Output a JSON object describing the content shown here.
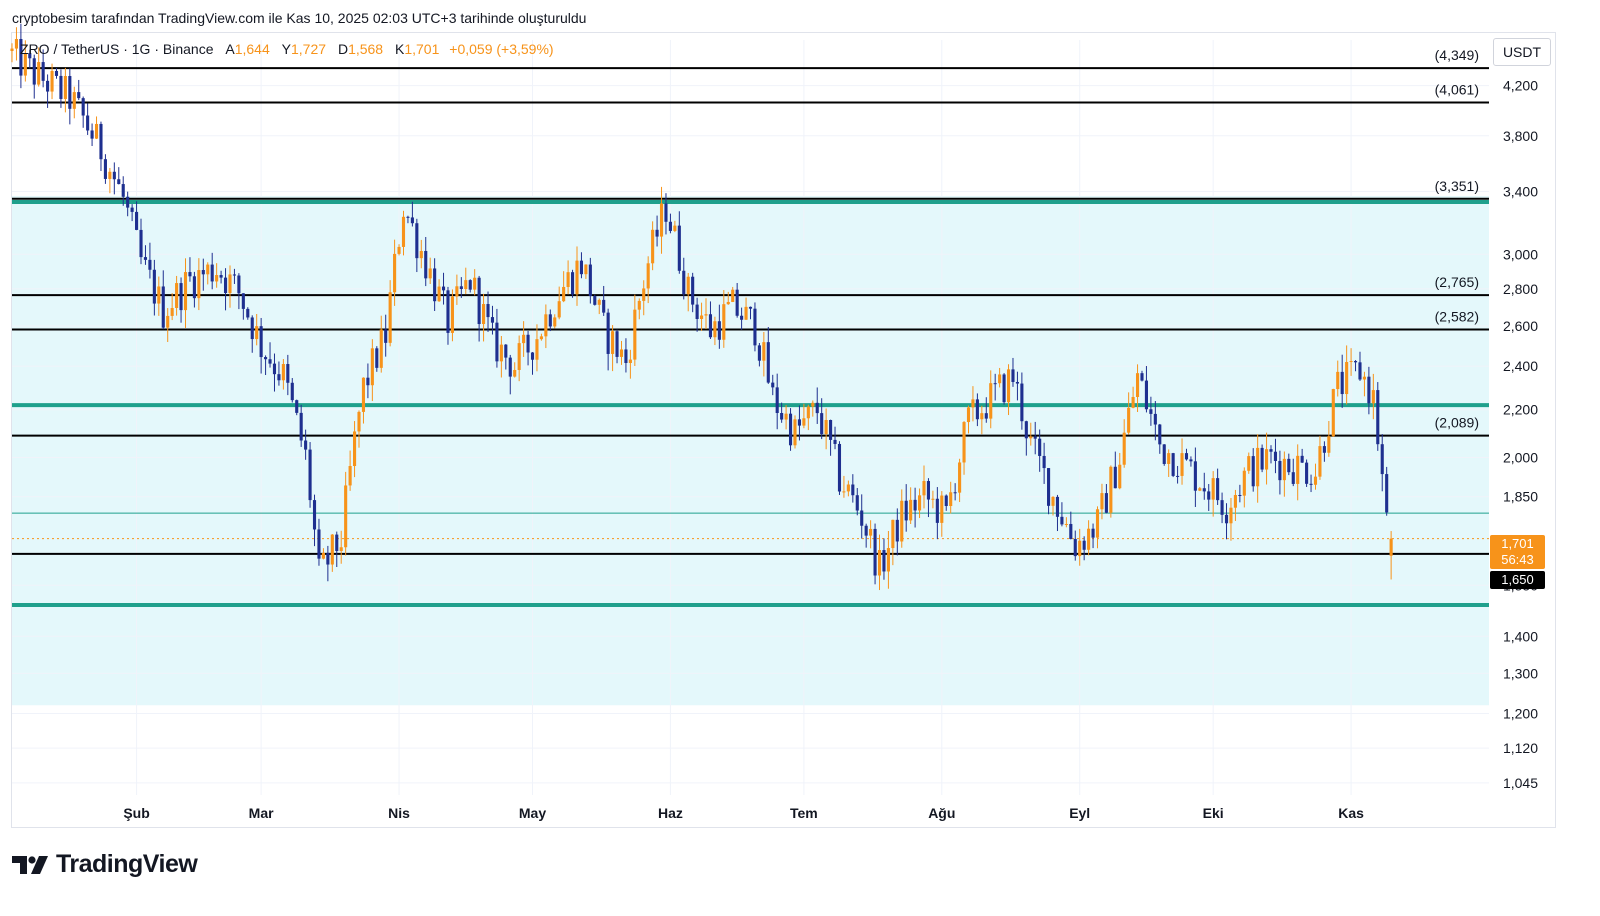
{
  "header": {
    "credit": "cryptobesim tarafından TradingView.com ile Kas 10, 2025 02:03 UTC+3 tarihinde oluşturuldu"
  },
  "legend": {
    "symbol": "ZRO / TetherUS · 1G · Binance",
    "open_label": "A",
    "open": "1,644",
    "high_label": "Y",
    "high": "1,727",
    "low_label": "D",
    "low": "1,568",
    "close_label": "K",
    "close": "1,701",
    "change": "+0,059 (+3,59%)"
  },
  "axis": {
    "unit": "USDT"
  },
  "price_tags": {
    "current_price": "1,701",
    "countdown": "56:43",
    "reference_price": "1,650"
  },
  "colors": {
    "up": "#f7931a",
    "down": "#1e2f8f",
    "zone_fill": "#e4f8fb",
    "zone_line": "#1fa08c",
    "level_line": "#000000"
  },
  "brand": {
    "logo_text": "TradingView",
    "logo_icon": "tradingview-logo-icon"
  },
  "chart_data": {
    "type": "candlestick",
    "title": "ZRO / TetherUS · 1G · Binance",
    "scale": "log",
    "ylim": [
      1.02,
      4.6
    ],
    "y_ticks": [
      "4,200",
      "3,800",
      "3,400",
      "3,000",
      "2,800",
      "2,600",
      "2,400",
      "2,200",
      "2,000",
      "1,850",
      "1,550",
      "1,400",
      "1,300",
      "1,200",
      "1,120",
      "1,045"
    ],
    "y_tick_values": [
      4.2,
      3.8,
      3.4,
      3.0,
      2.8,
      2.6,
      2.4,
      2.2,
      2.0,
      1.85,
      1.55,
      1.4,
      1.3,
      1.2,
      1.12,
      1.045
    ],
    "x_labels": [
      "Şub",
      "Mar",
      "Nis",
      "May",
      "Haz",
      "Tem",
      "Ağu",
      "Eyl",
      "Eki",
      "Kas"
    ],
    "x_label_dates": [
      "2025-02-01",
      "2025-03-01",
      "2025-04-01",
      "2025-05-01",
      "2025-06-01",
      "2025-07-01",
      "2025-08-01",
      "2025-09-01",
      "2025-10-01",
      "2025-11-01"
    ],
    "x_range": [
      "2025-01-04",
      "2025-12-02"
    ],
    "last_candle": {
      "date": "2025-11-10",
      "open": 1.644,
      "high": 1.727,
      "low": 1.568,
      "close": 1.701
    },
    "levels": [
      {
        "label": "(4,349)",
        "value": 4.349
      },
      {
        "label": "(4,061)",
        "value": 4.061
      },
      {
        "label": "(3,351)",
        "value": 3.351
      },
      {
        "label": "(2,765)",
        "value": 2.765
      },
      {
        "label": "(2,582)",
        "value": 2.582
      },
      {
        "label": "(2,089)",
        "value": 2.089
      },
      {
        "label": "",
        "value": 1.65
      }
    ],
    "support_resistance": [
      3.33,
      2.22,
      1.49
    ],
    "zone": {
      "top": 3.37,
      "bottom": 1.22
    },
    "thin_line": 1.79,
    "current_price_line": 1.701,
    "waypoints": [
      [
        "2025-01-04",
        4.5
      ],
      [
        "2025-01-10",
        4.3
      ],
      [
        "2025-01-18",
        4.1
      ],
      [
        "2025-01-25",
        3.7
      ],
      [
        "2025-01-30",
        3.35
      ],
      [
        "2025-02-03",
        2.95
      ],
      [
        "2025-02-08",
        2.68
      ],
      [
        "2025-02-14",
        2.85
      ],
      [
        "2025-02-20",
        2.92
      ],
      [
        "2025-02-25",
        2.78
      ],
      [
        "2025-03-02",
        2.5
      ],
      [
        "2025-03-07",
        2.35
      ],
      [
        "2025-03-12",
        2.0
      ],
      [
        "2025-03-15",
        1.58
      ],
      [
        "2025-03-20",
        1.7
      ],
      [
        "2025-03-25",
        2.3
      ],
      [
        "2025-03-30",
        2.55
      ],
      [
        "2025-04-03",
        3.3
      ],
      [
        "2025-04-08",
        2.95
      ],
      [
        "2025-04-13",
        2.62
      ],
      [
        "2025-04-18",
        2.85
      ],
      [
        "2025-04-23",
        2.52
      ],
      [
        "2025-04-28",
        2.4
      ],
      [
        "2025-05-03",
        2.55
      ],
      [
        "2025-05-08",
        2.78
      ],
      [
        "2025-05-13",
        2.95
      ],
      [
        "2025-05-18",
        2.58
      ],
      [
        "2025-05-23",
        2.42
      ],
      [
        "2025-05-28",
        2.95
      ],
      [
        "2025-06-01",
        3.3
      ],
      [
        "2025-06-06",
        2.78
      ],
      [
        "2025-06-11",
        2.58
      ],
      [
        "2025-06-16",
        2.7
      ],
      [
        "2025-06-21",
        2.6
      ],
      [
        "2025-06-25",
        2.25
      ],
      [
        "2025-06-30",
        2.1
      ],
      [
        "2025-07-05",
        2.2
      ],
      [
        "2025-07-10",
        1.92
      ],
      [
        "2025-07-15",
        1.78
      ],
      [
        "2025-07-19",
        1.6
      ],
      [
        "2025-07-24",
        1.78
      ],
      [
        "2025-07-29",
        1.85
      ],
      [
        "2025-08-03",
        1.78
      ],
      [
        "2025-08-08",
        2.15
      ],
      [
        "2025-08-13",
        2.25
      ],
      [
        "2025-08-18",
        2.35
      ],
      [
        "2025-08-22",
        2.05
      ],
      [
        "2025-08-27",
        1.85
      ],
      [
        "2025-09-01",
        1.68
      ],
      [
        "2025-09-06",
        1.75
      ],
      [
        "2025-09-11",
        2.0
      ],
      [
        "2025-09-15",
        2.35
      ],
      [
        "2025-09-20",
        2.05
      ],
      [
        "2025-09-25",
        1.98
      ],
      [
        "2025-09-30",
        1.9
      ],
      [
        "2025-10-05",
        1.82
      ],
      [
        "2025-10-10",
        1.95
      ],
      [
        "2025-10-15",
        2.0
      ],
      [
        "2025-10-20",
        1.97
      ],
      [
        "2025-10-25",
        1.95
      ],
      [
        "2025-10-30",
        2.3
      ],
      [
        "2025-11-04",
        2.38
      ],
      [
        "2025-11-07",
        2.25
      ],
      [
        "2025-11-10",
        1.75
      ],
      [
        "2025-11-14",
        1.95
      ],
      [
        "2025-11-18",
        1.65
      ],
      [
        "2025-11-22",
        1.7
      ],
      [
        "2025-11-26",
        1.62
      ],
      [
        "2025-11-30",
        1.65
      ],
      [
        "2025-12-02",
        1.5
      ]
    ]
  }
}
